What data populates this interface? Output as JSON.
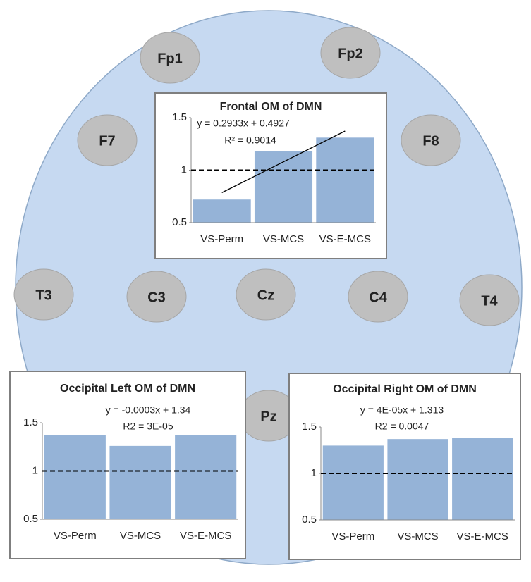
{
  "electrodes": [
    "Fp1",
    "Fp2",
    "F7",
    "F8",
    "T3",
    "C3",
    "Cz",
    "C4",
    "T4",
    "Pz"
  ],
  "chart_data": [
    {
      "type": "bar",
      "title": "Frontal OM of DMN",
      "annotations": [
        "y = 0.2933x + 0.4927",
        "R² = 0.9014"
      ],
      "categories": [
        "VS-Perm",
        "VS-MCS",
        "VS-E-MCS"
      ],
      "values": [
        0.72,
        1.18,
        1.31
      ],
      "color": "#95b3d7",
      "ylim": [
        0.5,
        1.5
      ],
      "yticks": [
        0.5,
        1,
        1.5
      ],
      "reference_line": 1,
      "trendline": {
        "slope": 0.2933,
        "intercept": 0.4927
      }
    },
    {
      "type": "bar",
      "title": "Occipital Left OM of DMN",
      "annotations": [
        "y = -0.0003x + 1.34",
        "R2 = 3E-05"
      ],
      "categories": [
        "VS-Perm",
        "VS-MCS",
        "VS-E-MCS"
      ],
      "values": [
        1.37,
        1.26,
        1.37
      ],
      "color": "#95b3d7",
      "ylim": [
        0.5,
        1.5
      ],
      "yticks": [
        0.5,
        1,
        1.5
      ],
      "reference_line": 1
    },
    {
      "type": "bar",
      "title": "Occipital Right OM of DMN",
      "annotations": [
        "y = 4E-05x + 1.313",
        "R2 = 0.0047"
      ],
      "categories": [
        "VS-Perm",
        "VS-MCS",
        "VS-E-MCS"
      ],
      "values": [
        1.3,
        1.37,
        1.38
      ],
      "color": "#95b3d7",
      "ylim": [
        0.5,
        1.5
      ],
      "yticks": [
        0.5,
        1,
        1.5
      ],
      "reference_line": 1
    }
  ]
}
